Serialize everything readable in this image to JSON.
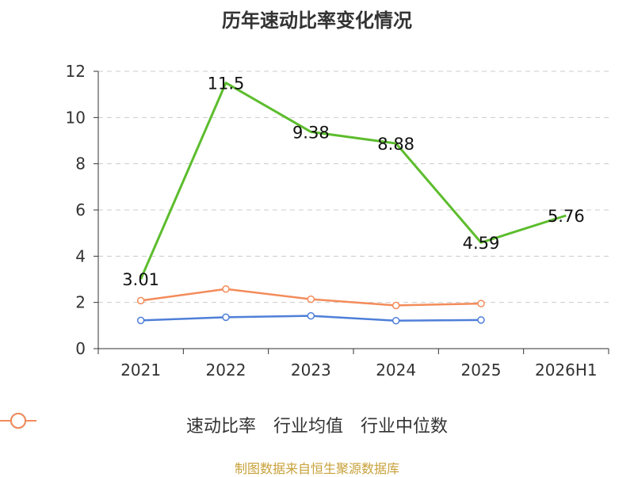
{
  "chart_data": {
    "type": "line",
    "title": "历年速动比率变化情况",
    "categories": [
      "2021",
      "2022",
      "2023",
      "2024",
      "2025",
      "2026H1"
    ],
    "ylim": [
      0,
      12
    ],
    "yticks": [
      0,
      2,
      4,
      6,
      8,
      10,
      12
    ],
    "ytick_labels": [
      "0",
      "2",
      "4",
      "6",
      "8",
      "10",
      "12"
    ],
    "grid": true,
    "legend_position": "bottom",
    "series": [
      {
        "name": "速动比率",
        "color": "#5cbd2d",
        "values": [
          3.01,
          11.5,
          9.38,
          8.88,
          4.59,
          5.76
        ],
        "labels": [
          "3.01",
          "11.5",
          "9.38",
          "8.88",
          "4.59",
          "5.76"
        ]
      },
      {
        "name": "行业均值",
        "color": "#4f7fd8",
        "values": [
          1.22,
          1.36,
          1.42,
          1.21,
          1.24,
          null
        ]
      },
      {
        "name": "行业中位数",
        "color": "#f38c5a",
        "values": [
          2.08,
          2.58,
          2.14,
          1.87,
          1.95,
          null
        ]
      }
    ]
  },
  "source_text": "制图数据来自恒生聚源数据库"
}
